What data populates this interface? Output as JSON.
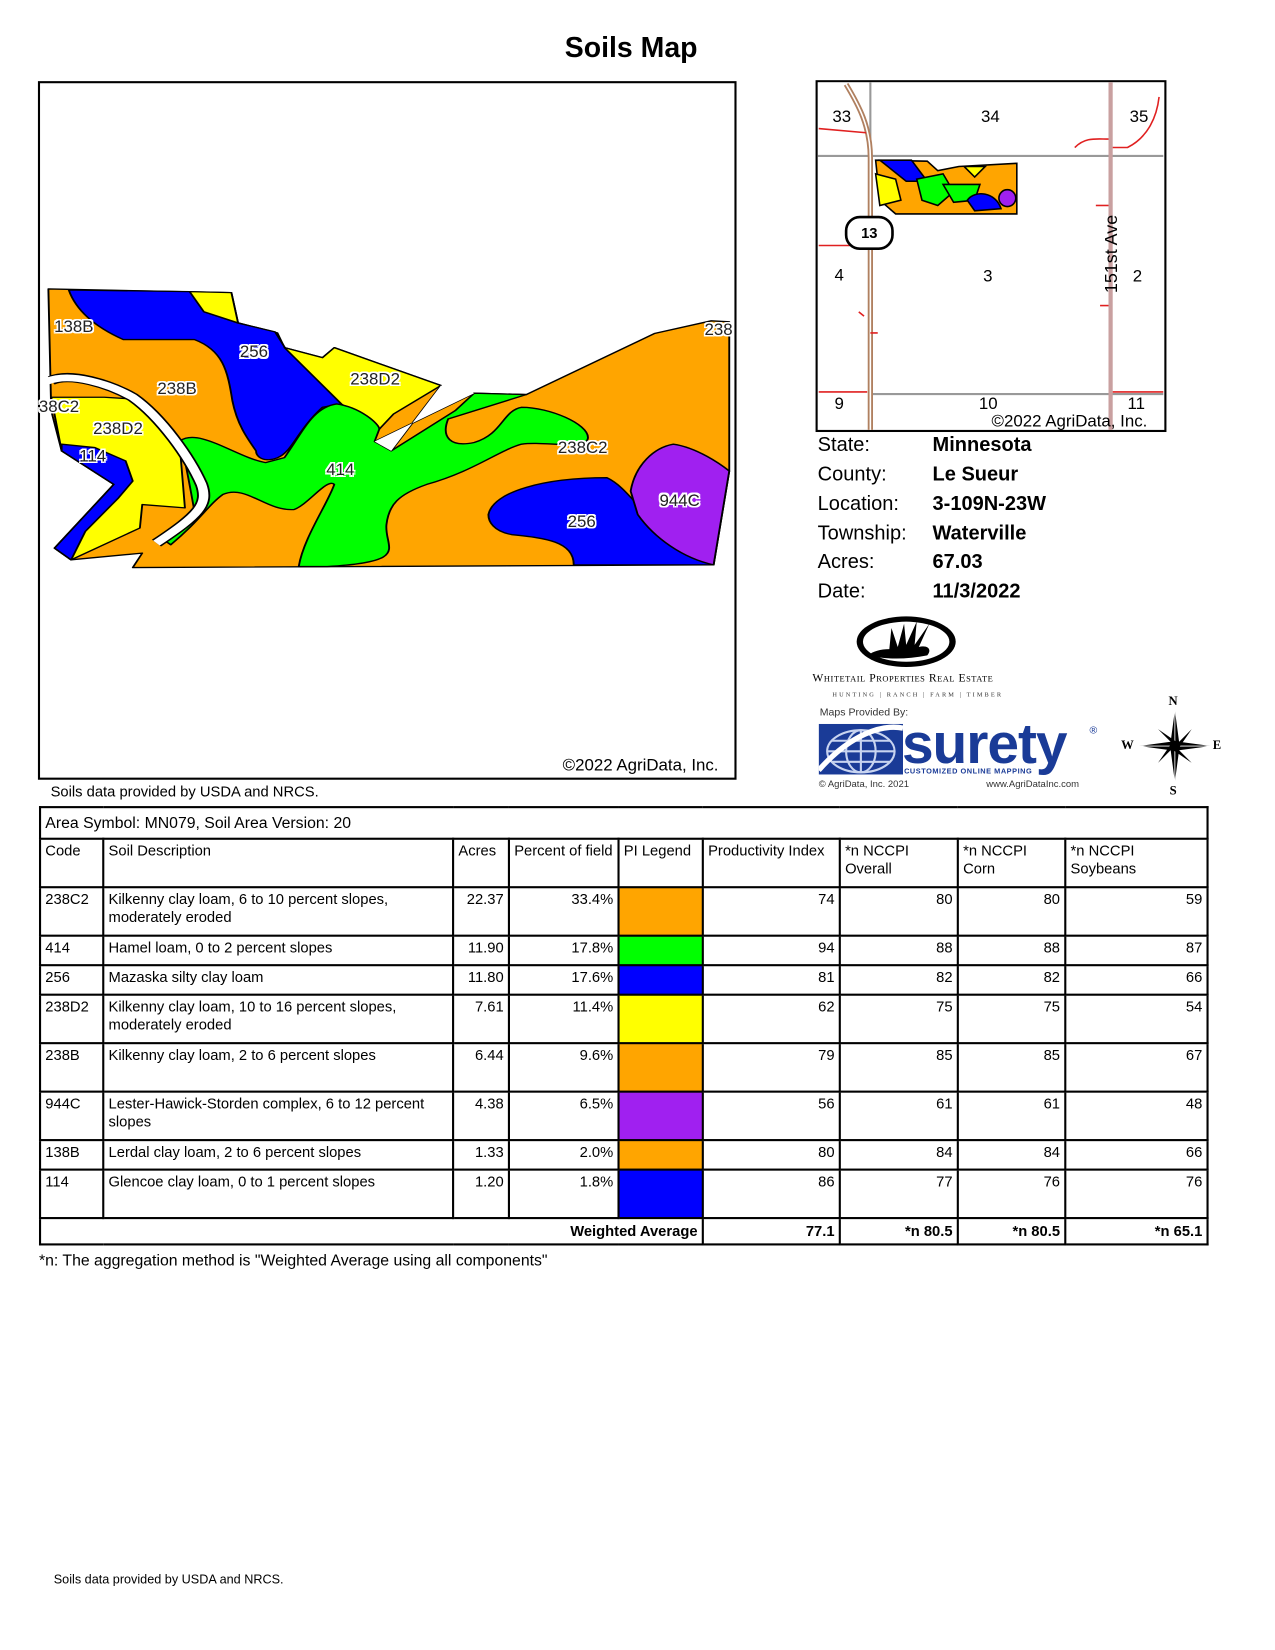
{
  "title": "Soils Map",
  "main_map": {
    "copyright": "©2022 AgriData, Inc.",
    "labels": [
      "138B",
      "256",
      "238B",
      "238D2",
      "38C2",
      "238D2",
      "114",
      "414",
      "238C2",
      "944C",
      "256",
      "238"
    ]
  },
  "source_note": "Soils data provided by USDA and NRCS.",
  "inset_map": {
    "sections": [
      "33",
      "34",
      "35",
      "4",
      "3",
      "2",
      "9",
      "10",
      "11"
    ],
    "road_label": "151st Ave",
    "highway": "13",
    "copyright": "©2022 AgriData, Inc."
  },
  "info": [
    {
      "label": "State:",
      "value": "Minnesota"
    },
    {
      "label": "County:",
      "value": "Le Sueur"
    },
    {
      "label": "Location:",
      "value": "3-109N-23W"
    },
    {
      "label": "Township:",
      "value": "Waterville"
    },
    {
      "label": "Acres:",
      "value": "67.03"
    },
    {
      "label": "Date:",
      "value": "11/3/2022"
    }
  ],
  "logos": {
    "whitetail_name": "Whitetail Properties Real Estate",
    "whitetail_tagline": "HUNTING | RANCH | FARM | TIMBER",
    "maps_provided_by": "Maps Provided By:",
    "surety": "surety",
    "surety_reg": "®",
    "surety_tagline": "CUSTOMIZED ONLINE MAPPING",
    "agridata_copyright": "© AgriData, Inc. 2021",
    "agridata_url": "www.AgriDataInc.com"
  },
  "compass": {
    "n": "N",
    "s": "S",
    "e": "E",
    "w": "W"
  },
  "colors": {
    "orange": "#FFA500",
    "green": "#00FF00",
    "blue": "#0000FF",
    "yellow": "#FFFF00",
    "purple": "#A020F0"
  },
  "table": {
    "area": "Area Symbol: MN079, Soil Area Version: 20",
    "headers": [
      "Code",
      "Soil Description",
      "Acres",
      "Percent of field",
      "PI Legend",
      "Productivity Index",
      "*n NCCPI Overall",
      "*n NCCPI Corn",
      "*n NCCPI Soybeans"
    ],
    "rows": [
      {
        "code": "238C2",
        "desc": "Kilkenny clay loam,  6 to 10 percent slopes, moderately eroded",
        "acres": "22.37",
        "pct": "33.4%",
        "color": "#FFA500",
        "pi": "74",
        "overall": "80",
        "corn": "80",
        "soy": "59"
      },
      {
        "code": "414",
        "desc": "Hamel loam, 0 to 2 percent slopes",
        "acres": "11.90",
        "pct": "17.8%",
        "color": "#00FF00",
        "pi": "94",
        "overall": "88",
        "corn": "88",
        "soy": "87"
      },
      {
        "code": "256",
        "desc": "Mazaska silty clay loam",
        "acres": "11.80",
        "pct": "17.6%",
        "color": "#0000FF",
        "pi": "81",
        "overall": "82",
        "corn": "82",
        "soy": "66"
      },
      {
        "code": "238D2",
        "desc": "Kilkenny clay loam, 10 to 16 percent slopes, moderately eroded",
        "acres": "7.61",
        "pct": "11.4%",
        "color": "#FFFF00",
        "pi": "62",
        "overall": "75",
        "corn": "75",
        "soy": "54"
      },
      {
        "code": "238B",
        "desc": "Kilkenny clay loam, 2 to 6 percent slopes",
        "acres": "6.44",
        "pct": "9.6%",
        "color": "#FFA500",
        "pi": "79",
        "overall": "85",
        "corn": "85",
        "soy": "67"
      },
      {
        "code": "944C",
        "desc": "Lester-Hawick-Storden complex, 6 to 12 percent slopes",
        "acres": "4.38",
        "pct": "6.5%",
        "color": "#A020F0",
        "pi": "56",
        "overall": "61",
        "corn": "61",
        "soy": "48"
      },
      {
        "code": "138B",
        "desc": "Lerdal clay loam, 2 to 6 percent slopes",
        "acres": "1.33",
        "pct": "2.0%",
        "color": "#FFA500",
        "pi": "80",
        "overall": "84",
        "corn": "84",
        "soy": "66"
      },
      {
        "code": "114",
        "desc": "Glencoe clay loam, 0 to 1 percent slopes",
        "acres": "1.20",
        "pct": "1.8%",
        "color": "#0000FF",
        "pi": "86",
        "overall": "77",
        "corn": "76",
        "soy": "76"
      }
    ],
    "weighted": {
      "label": "Weighted Average",
      "pi": "77.1",
      "overall": "*n 80.5",
      "corn": "*n 80.5",
      "soy": "*n 65.1"
    }
  },
  "footnote": "*n: The aggregation method is \"Weighted Average using all components\"",
  "bottom_note": "Soils data provided by USDA and NRCS."
}
